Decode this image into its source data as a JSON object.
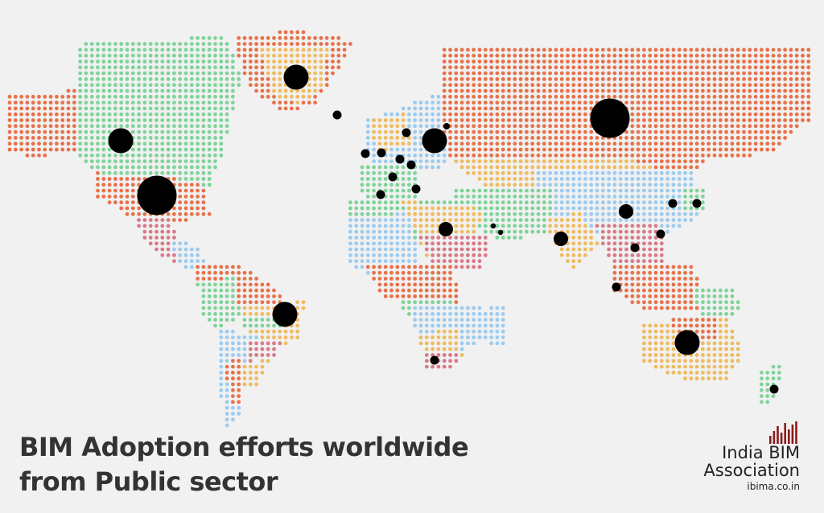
{
  "title": {
    "line1": "BIM Adoption efforts worldwide",
    "line2": "from Public sector"
  },
  "brand": {
    "name_line1": "India BIM",
    "name_line2": "Association",
    "url": "ibima.co.in",
    "logo": "bar-chart-logo",
    "logo_color": "#8b1a1a"
  },
  "palette": {
    "background": "#f1f1f1",
    "orange": "#e8714a",
    "green": "#7fd39a",
    "yellow": "#efbb5f",
    "blue": "#9ccbf0",
    "pink": "#d97a88",
    "marker": "#000000"
  },
  "markers": [
    {
      "location": "Canada",
      "size": "large"
    },
    {
      "location": "United States",
      "size": "very-large"
    },
    {
      "location": "Greenland",
      "size": "large"
    },
    {
      "location": "Iceland",
      "size": "small"
    },
    {
      "location": "Brazil",
      "size": "large"
    },
    {
      "location": "United Kingdom",
      "size": "small"
    },
    {
      "location": "Ireland",
      "size": "small"
    },
    {
      "location": "Norway",
      "size": "small"
    },
    {
      "location": "Sweden / Finland",
      "size": "large"
    },
    {
      "location": "Netherlands",
      "size": "small"
    },
    {
      "location": "Germany",
      "size": "small"
    },
    {
      "location": "France",
      "size": "small"
    },
    {
      "location": "Spain",
      "size": "small"
    },
    {
      "location": "Italy",
      "size": "small"
    },
    {
      "location": "Russia",
      "size": "very-large"
    },
    {
      "location": "Ethiopia",
      "size": "medium"
    },
    {
      "location": "Qatar",
      "size": "tiny"
    },
    {
      "location": "UAE",
      "size": "tiny"
    },
    {
      "location": "India",
      "size": "medium"
    },
    {
      "location": "China",
      "size": "medium"
    },
    {
      "location": "South Korea",
      "size": "small"
    },
    {
      "location": "Japan",
      "size": "small"
    },
    {
      "location": "Hong Kong",
      "size": "small"
    },
    {
      "location": "Vietnam",
      "size": "small"
    },
    {
      "location": "Singapore",
      "size": "small"
    },
    {
      "location": "South Africa",
      "size": "small"
    },
    {
      "location": "Australia",
      "size": "large"
    },
    {
      "location": "New Zealand",
      "size": "small"
    }
  ]
}
